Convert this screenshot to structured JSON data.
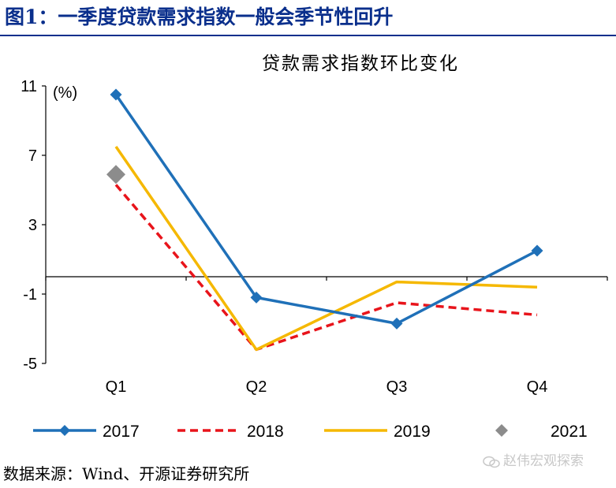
{
  "figure": {
    "title": "图1：一季度贷款需求指数一般会季节性回升",
    "source": "数据来源：Wind、开源证券研究所",
    "watermark": "赵伟宏观探索"
  },
  "chart_data": {
    "type": "line",
    "title": "贷款需求指数环比变化",
    "ylabel": "(%)",
    "xlabel": "",
    "categories": [
      "Q1",
      "Q2",
      "Q3",
      "Q4"
    ],
    "yticks": [
      11,
      7,
      3,
      -1,
      -5
    ],
    "ylim": [
      -5,
      11
    ],
    "baseline": 0,
    "series": [
      {
        "name": "2017",
        "values": [
          10.5,
          -1.2,
          -2.7,
          1.5
        ],
        "color": "#1f70b8",
        "style": "solid",
        "marker": "diamond"
      },
      {
        "name": "2018",
        "values": [
          5.3,
          -4.2,
          -1.5,
          -2.2
        ],
        "color": "#e8141b",
        "style": "dashed",
        "marker": "none"
      },
      {
        "name": "2019",
        "values": [
          7.5,
          -4.2,
          -0.3,
          -0.6
        ],
        "color": "#f5b800",
        "style": "solid",
        "marker": "none"
      },
      {
        "name": "2021",
        "values": [
          5.9,
          null,
          null,
          null
        ],
        "color": "#8c8c8c",
        "style": "none",
        "marker": "diamond"
      }
    ]
  }
}
